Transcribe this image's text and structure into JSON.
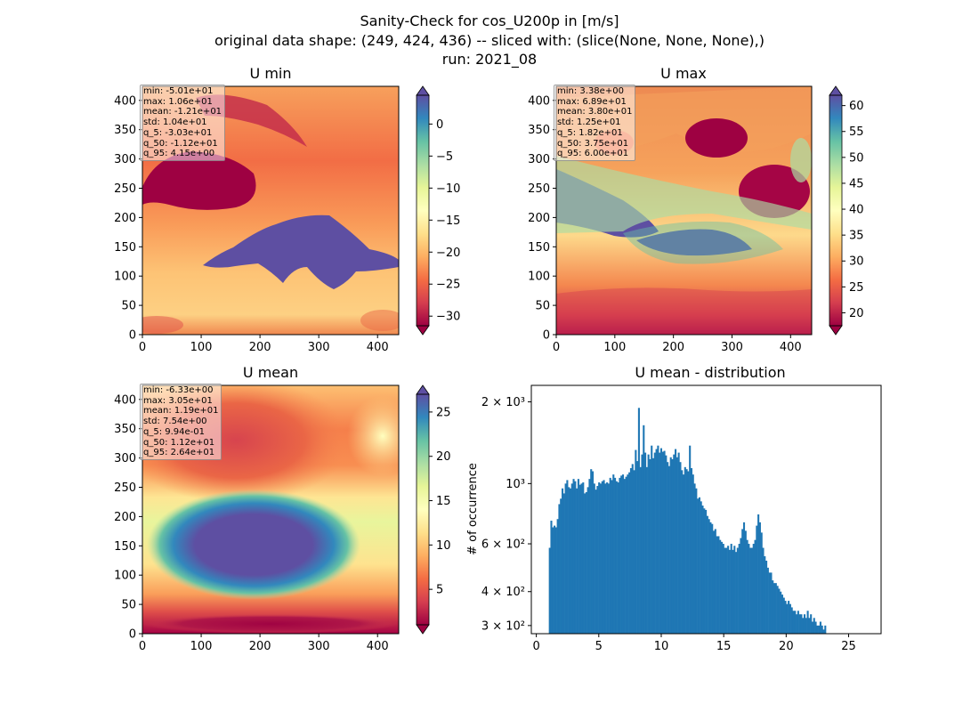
{
  "figure": {
    "title_lines": [
      "Sanity-Check for cos_U200p in [m/s]",
      "original data shape: (249, 424, 436) -- sliced with: (slice(None, None, None),)",
      "run: 2021_08"
    ]
  },
  "colormap": "Spectral",
  "chart_data": [
    {
      "type": "heatmap",
      "title": "U min",
      "xlim": [
        0,
        436
      ],
      "ylim": [
        0,
        424
      ],
      "xticks": [
        0,
        100,
        200,
        300,
        400
      ],
      "yticks": [
        0,
        50,
        100,
        150,
        200,
        250,
        300,
        350,
        400
      ],
      "colorbar": {
        "vmin": -31.5,
        "vmax": 4.5,
        "ticks": [
          0,
          -5,
          -10,
          -15,
          -20,
          -25,
          -30
        ],
        "extend": "both"
      },
      "stats": [
        "min: -5.01e+01",
        "max: 1.06e+01",
        "mean: -1.21e+01",
        "std: 1.04e+01",
        "q_5: -3.03e+01",
        "q_50: -1.12e+01",
        "q_95: 4.15e+00"
      ]
    },
    {
      "type": "heatmap",
      "title": "U max",
      "xlim": [
        0,
        436
      ],
      "ylim": [
        0,
        424
      ],
      "xticks": [
        0,
        100,
        200,
        300,
        400
      ],
      "yticks": [
        0,
        50,
        100,
        150,
        200,
        250,
        300,
        350,
        400
      ],
      "colorbar": {
        "vmin": 17.5,
        "vmax": 62,
        "ticks": [
          20,
          25,
          30,
          35,
          40,
          45,
          50,
          55,
          60
        ],
        "extend": "both"
      },
      "stats": [
        "min: 3.38e+00",
        "max: 6.89e+01",
        "mean: 3.80e+01",
        "std: 1.25e+01",
        "q_5: 1.82e+01",
        "q_50: 3.75e+01",
        "q_95: 6.00e+01"
      ]
    },
    {
      "type": "heatmap",
      "title": "U mean",
      "xlim": [
        0,
        436
      ],
      "ylim": [
        0,
        424
      ],
      "xticks": [
        0,
        100,
        200,
        300,
        400
      ],
      "yticks": [
        0,
        50,
        100,
        150,
        200,
        250,
        300,
        350,
        400
      ],
      "colorbar": {
        "vmin": 1,
        "vmax": 27,
        "ticks": [
          5,
          10,
          15,
          20,
          25
        ],
        "extend": "both"
      },
      "stats": [
        "min: -6.33e+00",
        "max: 3.05e+01",
        "mean: 1.19e+01",
        "std: 7.54e+00",
        "q_5: 9.94e-01",
        "q_50: 1.12e+01",
        "q_95: 2.64e+01"
      ]
    },
    {
      "type": "bar",
      "title": "U mean - distribution",
      "ylabel": "# of occurrence",
      "xlabel": "",
      "xlim": [
        -0.4,
        27.6
      ],
      "ylim": [
        280,
        2300
      ],
      "yscale": "log",
      "xticks": [
        0,
        5,
        10,
        15,
        20,
        25
      ],
      "yticks": [
        {
          "value": 300,
          "label": "3 × 10²"
        },
        {
          "value": 400,
          "label": "4 × 10²"
        },
        {
          "value": 600,
          "label": "6 × 10²"
        },
        {
          "value": 1000,
          "label": "10³"
        },
        {
          "value": 2000,
          "label": "2 × 10³"
        }
      ],
      "bar_color": "#1f77b4",
      "bin_start": 1.0,
      "bin_width": 0.1275,
      "values": [
        580,
        730,
        690,
        700,
        690,
        740,
        840,
        880,
        960,
        920,
        1000,
        1030,
        970,
        960,
        1000,
        1040,
        1020,
        960,
        1040,
        990,
        1000,
        1010,
        920,
        930,
        970,
        1040,
        1130,
        1110,
        1000,
        950,
        980,
        1010,
        1000,
        1020,
        1030,
        1000,
        1010,
        1000,
        1050,
        1030,
        1080,
        1050,
        1020,
        1010,
        1050,
        1070,
        1080,
        1040,
        1060,
        1080,
        1100,
        1140,
        1180,
        1120,
        1330,
        1210,
        1900,
        1150,
        1280,
        1640,
        1300,
        1150,
        1280,
        1230,
        1380,
        1240,
        1300,
        1340,
        1380,
        1300,
        1350,
        1310,
        1320,
        1270,
        1200,
        1160,
        1250,
        1230,
        1280,
        1340,
        1250,
        1300,
        1200,
        1120,
        1080,
        1150,
        1130,
        1110,
        1380,
        1140,
        1080,
        1000,
        960,
        880,
        890,
        860,
        830,
        810,
        800,
        760,
        740,
        720,
        710,
        670,
        680,
        640,
        640,
        620,
        610,
        600,
        580,
        580,
        590,
        570,
        600,
        570,
        590,
        560,
        580,
        600,
        630,
        680,
        720,
        670,
        620,
        600,
        580,
        580,
        600,
        620,
        700,
        770,
        720,
        660,
        580,
        540,
        520,
        490,
        470,
        470,
        440,
        430,
        430,
        420,
        410,
        400,
        390,
        380,
        370,
        360,
        370,
        360,
        350,
        340,
        340,
        330,
        340,
        330,
        330,
        320,
        330,
        320,
        340,
        320,
        330,
        310,
        320,
        310,
        300,
        300,
        310,
        300,
        290,
        300
      ]
    }
  ]
}
